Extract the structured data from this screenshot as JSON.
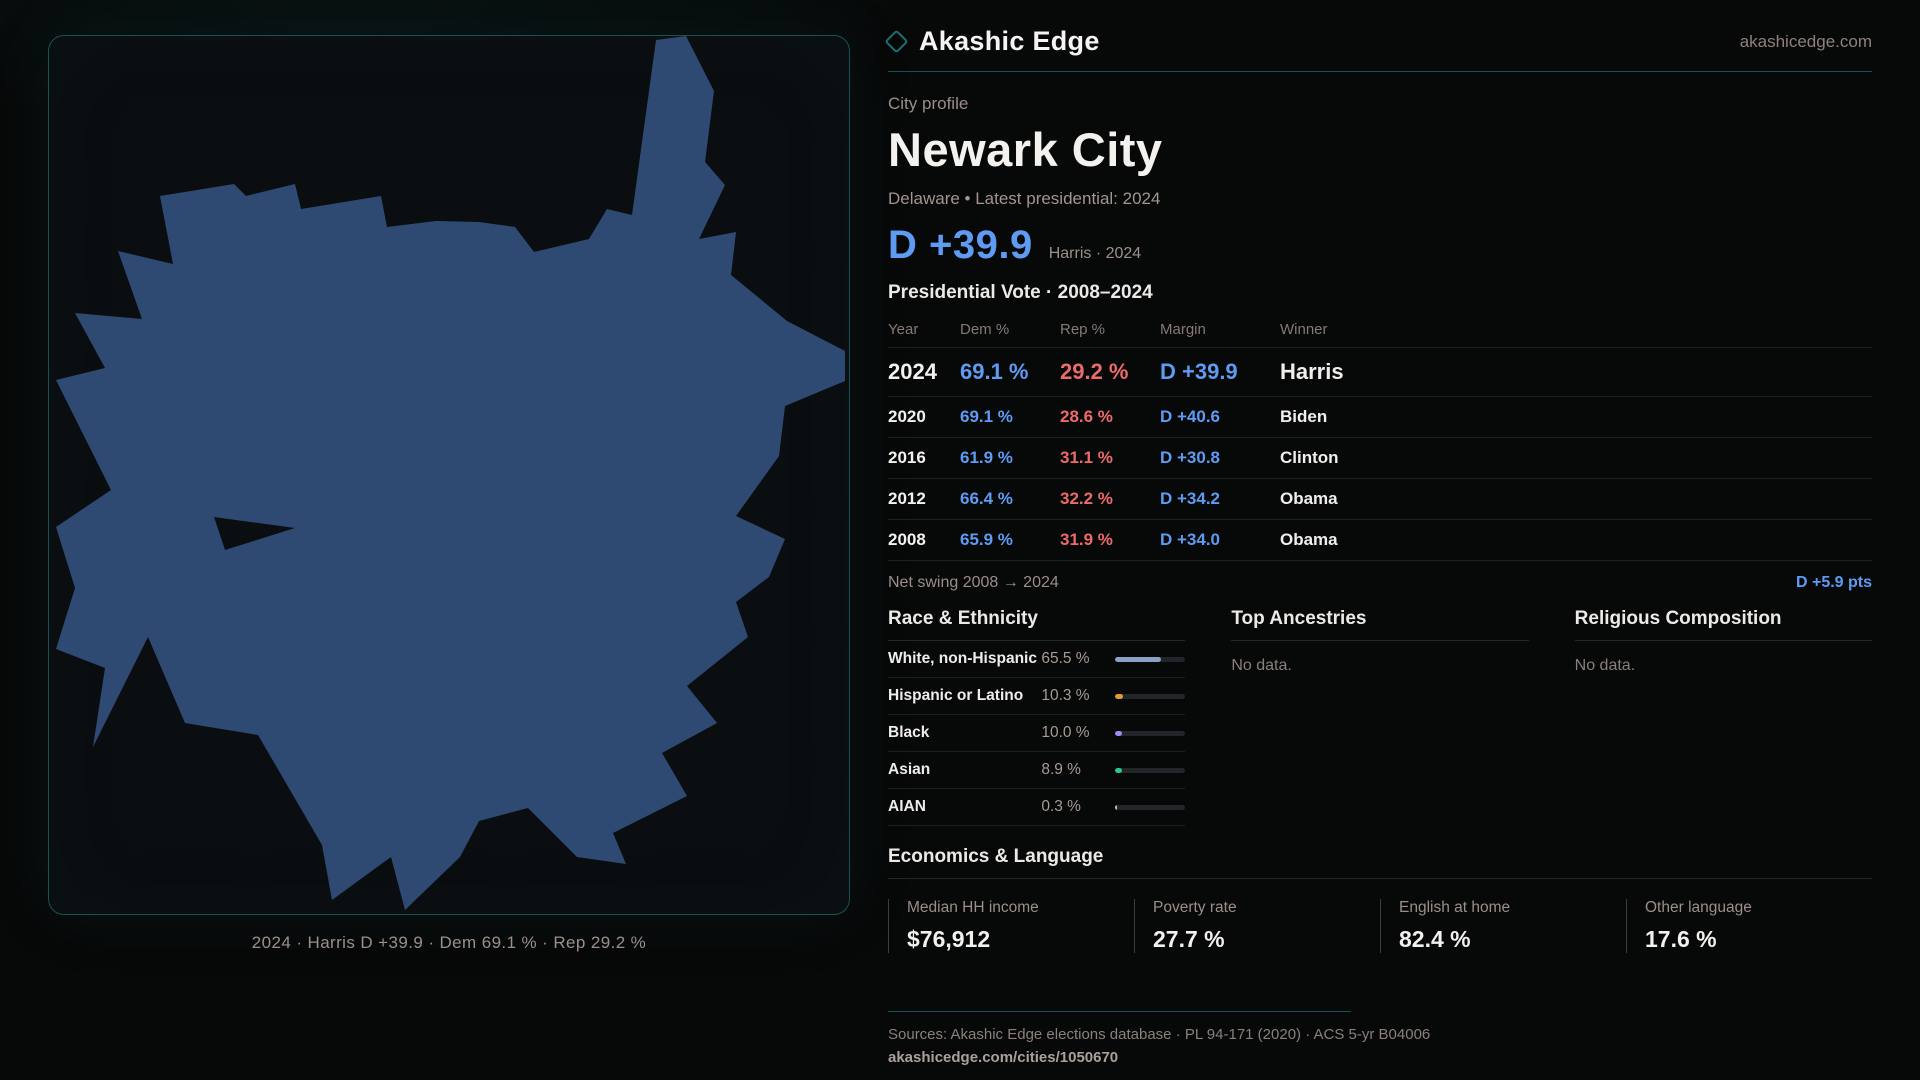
{
  "brand": {
    "logo_icon": "diamond-icon",
    "name": "Akashic Edge",
    "domain": "akashicedge.com"
  },
  "profile": {
    "eyebrow": "City profile",
    "title": "Newark City",
    "subtitle": "Delaware • Latest presidential: 2024",
    "headline_margin": "D +39.9",
    "headline_context": "Harris · 2024"
  },
  "election_table": {
    "title": "Presidential Vote · 2008–2024",
    "headers": [
      "Year",
      "Dem %",
      "Rep %",
      "Margin",
      "Winner"
    ],
    "rows": [
      {
        "year": "2024",
        "dem": "69.1 %",
        "rep": "29.2 %",
        "margin": "D +39.9",
        "winner": "Harris",
        "latest": true
      },
      {
        "year": "2020",
        "dem": "69.1 %",
        "rep": "28.6 %",
        "margin": "D +40.6",
        "winner": "Biden",
        "latest": false
      },
      {
        "year": "2016",
        "dem": "61.9 %",
        "rep": "31.1 %",
        "margin": "D +30.8",
        "winner": "Clinton",
        "latest": false
      },
      {
        "year": "2012",
        "dem": "66.4 %",
        "rep": "32.2 %",
        "margin": "D +34.2",
        "winner": "Obama",
        "latest": false
      },
      {
        "year": "2008",
        "dem": "65.9 %",
        "rep": "31.9 %",
        "margin": "D +34.0",
        "winner": "Obama",
        "latest": false
      }
    ],
    "net_swing_label": "Net swing 2008 → 2024",
    "net_swing_value": "D +5.9 pts"
  },
  "race": {
    "title": "Race & Ethnicity",
    "rows": [
      {
        "label": "White, non-Hispanic",
        "value": "65.5 %",
        "pct": 65.5,
        "color": "#8ba1c4"
      },
      {
        "label": "Hispanic or Latino",
        "value": "10.3 %",
        "pct": 10.3,
        "color": "#e39a31"
      },
      {
        "label": "Black",
        "value": "10.0 %",
        "pct": 10.0,
        "color": "#a388f2"
      },
      {
        "label": "Asian",
        "value": "8.9 %",
        "pct": 8.9,
        "color": "#2ec48e"
      },
      {
        "label": "AIAN",
        "value": "0.3 %",
        "pct": 0.3,
        "color": "#b9bdc2"
      }
    ]
  },
  "ancestries": {
    "title": "Top Ancestries",
    "empty": "No data."
  },
  "religion": {
    "title": "Religious Composition",
    "empty": "No data."
  },
  "economics": {
    "title": "Economics & Language",
    "stats": [
      {
        "label": "Median HH income",
        "value": "$76,912"
      },
      {
        "label": "Poverty rate",
        "value": "27.7 %"
      },
      {
        "label": "English at home",
        "value": "82.4 %"
      },
      {
        "label": "Other language",
        "value": "17.6 %"
      }
    ]
  },
  "map": {
    "caption": "2024 · Harris D +39.9 · Dem 69.1 % · Rep 29.2 %"
  },
  "footer": {
    "sources": "Sources: Akashic Edge elections database · PL 94-171 (2020) · ACS 5-yr B04006",
    "permalink": "akashicedge.com/cities/1050670"
  },
  "colors": {
    "accent_teal": "#1b5054",
    "dem_blue": "#5e9cf3",
    "rep_red": "#ed6a6a",
    "map_fill": "#2e4a73",
    "background": "#070808"
  }
}
